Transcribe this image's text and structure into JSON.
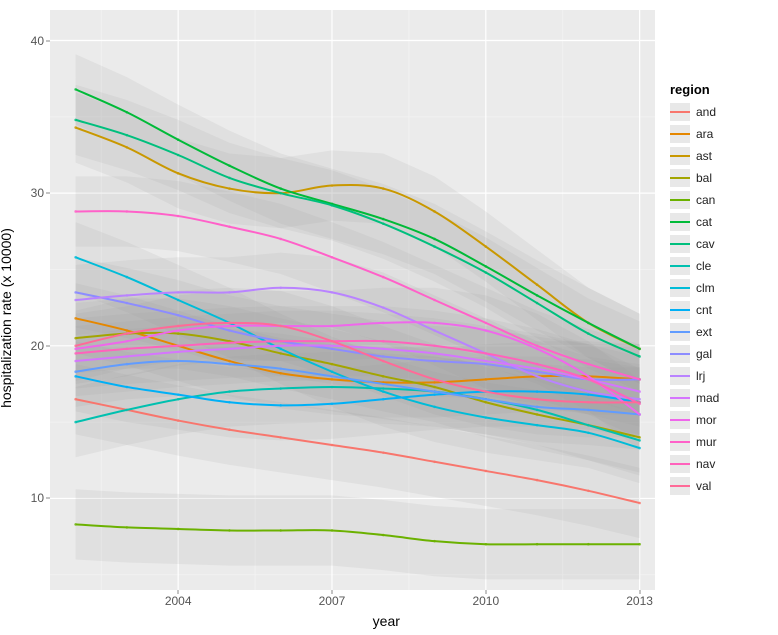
{
  "chart": {
    "type": "line",
    "background_color": "#ffffff",
    "panel_background": "#ebebeb",
    "grid_major_color": "#ffffff",
    "grid_minor_color": "#f3f3f3",
    "ribbon_fill": "#9a9a9a",
    "ribbon_opacity": 0.13,
    "line_width": 2,
    "x": {
      "label": "year",
      "lim": [
        2001.5,
        2013.3
      ],
      "major_ticks": [
        2004,
        2007,
        2010,
        2013
      ],
      "minor_ticks": [
        2002.5,
        2005.5,
        2008.5,
        2011.5
      ],
      "label_fontsize": 14,
      "tick_fontsize": 12
    },
    "y": {
      "label": "hospitalization rate (x 10000)",
      "lim": [
        4,
        42
      ],
      "major_ticks": [
        10,
        20,
        30,
        40
      ],
      "minor_ticks": [
        5,
        15,
        25,
        35
      ],
      "label_fontsize": 14,
      "tick_fontsize": 12
    },
    "legend": {
      "title": "region",
      "title_fontsize": 13,
      "item_fontsize": 12,
      "position": "right",
      "items": [
        {
          "id": "and",
          "label": "and",
          "color": "#f8766d"
        },
        {
          "id": "ara",
          "label": "ara",
          "color": "#e58700"
        },
        {
          "id": "ast",
          "label": "ast",
          "color": "#c99800"
        },
        {
          "id": "bal",
          "label": "bal",
          "color": "#a3a500"
        },
        {
          "id": "can",
          "label": "can",
          "color": "#6bb100"
        },
        {
          "id": "cat",
          "label": "cat",
          "color": "#00ba38"
        },
        {
          "id": "cav",
          "label": "cav",
          "color": "#00bf7d"
        },
        {
          "id": "cle",
          "label": "cle",
          "color": "#00c0af"
        },
        {
          "id": "clm",
          "label": "clm",
          "color": "#00bcd8"
        },
        {
          "id": "cnt",
          "label": "cnt",
          "color": "#00b0f6"
        },
        {
          "id": "ext",
          "label": "ext",
          "color": "#619cff"
        },
        {
          "id": "gal",
          "label": "gal",
          "color": "#8c8cff"
        },
        {
          "id": "lrj",
          "label": "lrj",
          "color": "#b983ff"
        },
        {
          "id": "mad",
          "label": "mad",
          "color": "#d575fe"
        },
        {
          "id": "mor",
          "label": "mor",
          "color": "#ef67eb"
        },
        {
          "id": "mur",
          "label": "mur",
          "color": "#ff61c9"
        },
        {
          "id": "nav",
          "label": "nav",
          "color": "#ff62bc"
        },
        {
          "id": "val",
          "label": "val",
          "color": "#ff6a98"
        }
      ]
    },
    "series": {
      "and": [
        [
          2002,
          16.5
        ],
        [
          2003,
          15.8
        ],
        [
          2004,
          15.1
        ],
        [
          2005,
          14.5
        ],
        [
          2006,
          14.0
        ],
        [
          2007,
          13.5
        ],
        [
          2008,
          13.0
        ],
        [
          2009,
          12.4
        ],
        [
          2010,
          11.8
        ],
        [
          2011,
          11.2
        ],
        [
          2012,
          10.5
        ],
        [
          2013,
          9.7
        ]
      ],
      "ara": [
        [
          2002,
          21.8
        ],
        [
          2003,
          21.0
        ],
        [
          2004,
          20.0
        ],
        [
          2005,
          19.0
        ],
        [
          2006,
          18.2
        ],
        [
          2007,
          17.8
        ],
        [
          2008,
          17.6
        ],
        [
          2009,
          17.6
        ],
        [
          2010,
          17.8
        ],
        [
          2011,
          18.0
        ],
        [
          2012,
          18.0
        ],
        [
          2013,
          17.8
        ]
      ],
      "ast": [
        [
          2002,
          34.3
        ],
        [
          2003,
          33.0
        ],
        [
          2004,
          31.3
        ],
        [
          2005,
          30.3
        ],
        [
          2006,
          30.0
        ],
        [
          2007,
          30.5
        ],
        [
          2008,
          30.3
        ],
        [
          2009,
          28.8
        ],
        [
          2010,
          26.5
        ],
        [
          2011,
          24.0
        ],
        [
          2012,
          21.5
        ],
        [
          2013,
          19.8
        ]
      ],
      "bal": [
        [
          2002,
          20.5
        ],
        [
          2003,
          20.8
        ],
        [
          2004,
          20.8
        ],
        [
          2005,
          20.3
        ],
        [
          2006,
          19.5
        ],
        [
          2007,
          18.8
        ],
        [
          2008,
          18.0
        ],
        [
          2009,
          17.3
        ],
        [
          2010,
          16.3
        ],
        [
          2011,
          15.5
        ],
        [
          2012,
          14.8
        ],
        [
          2013,
          14.0
        ]
      ],
      "can": [
        [
          2002,
          8.3
        ],
        [
          2003,
          8.1
        ],
        [
          2004,
          8.0
        ],
        [
          2005,
          7.9
        ],
        [
          2006,
          7.9
        ],
        [
          2007,
          7.9
        ],
        [
          2008,
          7.6
        ],
        [
          2009,
          7.2
        ],
        [
          2010,
          7.0
        ],
        [
          2011,
          7.0
        ],
        [
          2012,
          7.0
        ],
        [
          2013,
          7.0
        ]
      ],
      "cat": [
        [
          2002,
          36.8
        ],
        [
          2003,
          35.3
        ],
        [
          2004,
          33.5
        ],
        [
          2005,
          31.8
        ],
        [
          2006,
          30.3
        ],
        [
          2007,
          29.3
        ],
        [
          2008,
          28.3
        ],
        [
          2009,
          27.0
        ],
        [
          2010,
          25.2
        ],
        [
          2011,
          23.3
        ],
        [
          2012,
          21.5
        ],
        [
          2013,
          19.8
        ]
      ],
      "cav": [
        [
          2002,
          34.8
        ],
        [
          2003,
          33.8
        ],
        [
          2004,
          32.5
        ],
        [
          2005,
          31.0
        ],
        [
          2006,
          30.0
        ],
        [
          2007,
          29.2
        ],
        [
          2008,
          28.0
        ],
        [
          2009,
          26.5
        ],
        [
          2010,
          24.8
        ],
        [
          2011,
          22.8
        ],
        [
          2012,
          20.8
        ],
        [
          2013,
          19.3
        ]
      ],
      "cle": [
        [
          2002,
          15.0
        ],
        [
          2003,
          15.8
        ],
        [
          2004,
          16.5
        ],
        [
          2005,
          17.0
        ],
        [
          2006,
          17.2
        ],
        [
          2007,
          17.3
        ],
        [
          2008,
          17.2
        ],
        [
          2009,
          17.0
        ],
        [
          2010,
          16.5
        ],
        [
          2011,
          15.8
        ],
        [
          2012,
          14.8
        ],
        [
          2013,
          13.8
        ]
      ],
      "clm": [
        [
          2002,
          25.8
        ],
        [
          2003,
          24.5
        ],
        [
          2004,
          23.0
        ],
        [
          2005,
          21.5
        ],
        [
          2006,
          19.8
        ],
        [
          2007,
          18.3
        ],
        [
          2008,
          17.0
        ],
        [
          2009,
          16.0
        ],
        [
          2010,
          15.3
        ],
        [
          2011,
          14.8
        ],
        [
          2012,
          14.3
        ],
        [
          2013,
          13.3
        ]
      ],
      "cnt": [
        [
          2002,
          18.0
        ],
        [
          2003,
          17.3
        ],
        [
          2004,
          16.8
        ],
        [
          2005,
          16.3
        ],
        [
          2006,
          16.1
        ],
        [
          2007,
          16.2
        ],
        [
          2008,
          16.5
        ],
        [
          2009,
          16.8
        ],
        [
          2010,
          17.0
        ],
        [
          2011,
          17.0
        ],
        [
          2012,
          16.8
        ],
        [
          2013,
          16.3
        ]
      ],
      "ext": [
        [
          2002,
          18.3
        ],
        [
          2003,
          18.8
        ],
        [
          2004,
          19.0
        ],
        [
          2005,
          18.8
        ],
        [
          2006,
          18.5
        ],
        [
          2007,
          18.0
        ],
        [
          2008,
          17.5
        ],
        [
          2009,
          17.0
        ],
        [
          2010,
          16.5
        ],
        [
          2011,
          16.0
        ],
        [
          2012,
          15.8
        ],
        [
          2013,
          15.5
        ]
      ],
      "gal": [
        [
          2002,
          23.5
        ],
        [
          2003,
          22.8
        ],
        [
          2004,
          22.0
        ],
        [
          2005,
          21.0
        ],
        [
          2006,
          20.3
        ],
        [
          2007,
          19.8
        ],
        [
          2008,
          19.3
        ],
        [
          2009,
          19.0
        ],
        [
          2010,
          18.8
        ],
        [
          2011,
          18.3
        ],
        [
          2012,
          17.8
        ],
        [
          2013,
          17.8
        ]
      ],
      "lrj": [
        [
          2002,
          23.0
        ],
        [
          2003,
          23.3
        ],
        [
          2004,
          23.5
        ],
        [
          2005,
          23.5
        ],
        [
          2006,
          23.8
        ],
        [
          2007,
          23.5
        ],
        [
          2008,
          22.5
        ],
        [
          2009,
          21.0
        ],
        [
          2010,
          19.5
        ],
        [
          2011,
          18.0
        ],
        [
          2012,
          17.0
        ],
        [
          2013,
          16.5
        ]
      ],
      "mad": [
        [
          2002,
          19.0
        ],
        [
          2003,
          19.3
        ],
        [
          2004,
          19.6
        ],
        [
          2005,
          19.8
        ],
        [
          2006,
          20.0
        ],
        [
          2007,
          20.0
        ],
        [
          2008,
          19.8
        ],
        [
          2009,
          19.5
        ],
        [
          2010,
          19.0
        ],
        [
          2011,
          18.5
        ],
        [
          2012,
          17.8
        ],
        [
          2013,
          17.0
        ]
      ],
      "mor": [
        [
          2002,
          19.8
        ],
        [
          2003,
          20.3
        ],
        [
          2004,
          21.0
        ],
        [
          2005,
          21.3
        ],
        [
          2006,
          21.3
        ],
        [
          2007,
          21.3
        ],
        [
          2008,
          21.5
        ],
        [
          2009,
          21.5
        ],
        [
          2010,
          21.0
        ],
        [
          2011,
          19.8
        ],
        [
          2012,
          18.0
        ],
        [
          2013,
          15.5
        ]
      ],
      "mur": [
        [
          2002,
          28.8
        ],
        [
          2003,
          28.8
        ],
        [
          2004,
          28.5
        ],
        [
          2005,
          27.8
        ],
        [
          2006,
          27.0
        ],
        [
          2007,
          25.8
        ],
        [
          2008,
          24.5
        ],
        [
          2009,
          23.0
        ],
        [
          2010,
          21.5
        ],
        [
          2011,
          20.0
        ],
        [
          2012,
          18.8
        ],
        [
          2013,
          17.8
        ]
      ],
      "nav": [
        [
          2002,
          19.5
        ],
        [
          2003,
          19.8
        ],
        [
          2004,
          20.0
        ],
        [
          2005,
          20.2
        ],
        [
          2006,
          20.3
        ],
        [
          2007,
          20.3
        ],
        [
          2008,
          20.3
        ],
        [
          2009,
          20.0
        ],
        [
          2010,
          19.5
        ],
        [
          2011,
          18.8
        ],
        [
          2012,
          17.8
        ],
        [
          2013,
          16.2
        ]
      ],
      "val": [
        [
          2002,
          20.0
        ],
        [
          2003,
          20.8
        ],
        [
          2004,
          21.3
        ],
        [
          2005,
          21.5
        ],
        [
          2006,
          21.3
        ],
        [
          2007,
          20.3
        ],
        [
          2008,
          19.0
        ],
        [
          2009,
          17.8
        ],
        [
          2010,
          17.0
        ],
        [
          2011,
          16.5
        ],
        [
          2012,
          16.3
        ],
        [
          2013,
          16.3
        ]
      ]
    },
    "ribbons_half_width": 2.3
  }
}
